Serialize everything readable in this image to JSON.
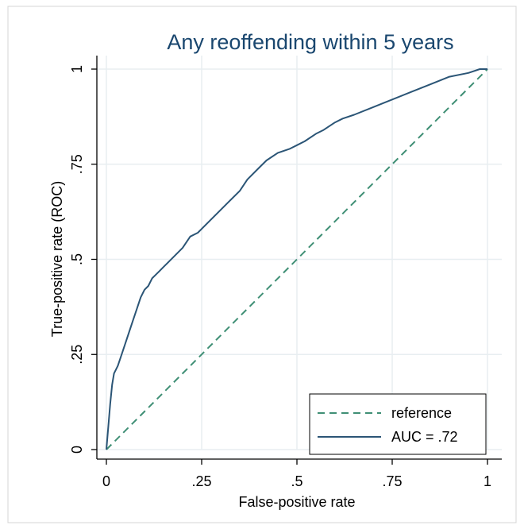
{
  "chart_data": {
    "type": "line",
    "title": "Any reoffending within 5 years",
    "xlabel": "False-positive rate",
    "ylabel": "True-positive rate (ROC)",
    "xlim": [
      0,
      1
    ],
    "ylim": [
      0,
      1
    ],
    "x_ticks": [
      {
        "value": 0,
        "label": "0"
      },
      {
        "value": 0.25,
        "label": ".25"
      },
      {
        "value": 0.5,
        "label": ".5"
      },
      {
        "value": 0.75,
        "label": ".75"
      },
      {
        "value": 1,
        "label": "1"
      }
    ],
    "y_ticks": [
      {
        "value": 0,
        "label": "0"
      },
      {
        "value": 0.25,
        "label": ".25"
      },
      {
        "value": 0.5,
        "label": ".5"
      },
      {
        "value": 0.75,
        "label": ".75"
      },
      {
        "value": 1,
        "label": "1"
      }
    ],
    "grid": true,
    "legend_position": "bottom-right",
    "series": [
      {
        "name": "reference",
        "style": "dashed",
        "color": "#3f8f75",
        "x": [
          0,
          1
        ],
        "y": [
          0,
          1
        ]
      },
      {
        "name": "AUC = .72",
        "style": "solid",
        "color": "#2b5576",
        "x": [
          0,
          0.005,
          0.01,
          0.015,
          0.02,
          0.03,
          0.04,
          0.05,
          0.06,
          0.07,
          0.08,
          0.09,
          0.1,
          0.11,
          0.12,
          0.13,
          0.14,
          0.15,
          0.16,
          0.18,
          0.2,
          0.22,
          0.24,
          0.25,
          0.27,
          0.3,
          0.32,
          0.35,
          0.37,
          0.4,
          0.42,
          0.45,
          0.48,
          0.5,
          0.52,
          0.55,
          0.57,
          0.6,
          0.62,
          0.65,
          0.7,
          0.75,
          0.8,
          0.85,
          0.9,
          0.95,
          0.98,
          1
        ],
        "y": [
          0,
          0.06,
          0.12,
          0.17,
          0.2,
          0.22,
          0.25,
          0.28,
          0.31,
          0.34,
          0.37,
          0.4,
          0.42,
          0.43,
          0.45,
          0.46,
          0.47,
          0.48,
          0.49,
          0.51,
          0.53,
          0.56,
          0.57,
          0.58,
          0.6,
          0.63,
          0.65,
          0.68,
          0.71,
          0.74,
          0.76,
          0.78,
          0.79,
          0.8,
          0.81,
          0.83,
          0.84,
          0.86,
          0.87,
          0.88,
          0.9,
          0.92,
          0.94,
          0.96,
          0.98,
          0.99,
          1,
          1
        ]
      }
    ]
  },
  "style": {
    "title_color": "#1a476f",
    "grid_color": "#e8eef1",
    "frame_color": "#c8c8c8",
    "legend_border": "#000000"
  }
}
